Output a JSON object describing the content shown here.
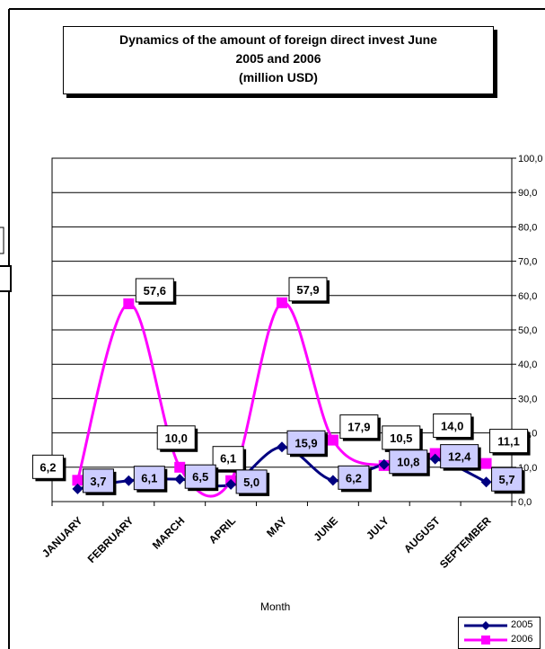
{
  "chart_data": {
    "type": "line",
    "title_lines": [
      "Dynamics of the amount of foreign direct invest June",
      "2005 and  2006",
      "(million USD)"
    ],
    "xlabel": "Month",
    "ylabel": "",
    "categories": [
      "JANUARY",
      "FEBRUARY",
      "MARCH",
      "APRIL",
      "MAY",
      "JUNE",
      "JULY",
      "AUGUST",
      "SEPTEMBER"
    ],
    "y_ticks": [
      "0,0",
      "10,0",
      "20,0",
      "30,0",
      "40,0",
      "50,0",
      "60,0",
      "70,0",
      "80,0",
      "90,0",
      "100,0"
    ],
    "ylim": [
      0,
      100
    ],
    "grid": true,
    "legend_position": "bottom-right",
    "series": [
      {
        "name": "2005",
        "color": "#000080",
        "marker": "diamond",
        "values": [
          3.7,
          6.1,
          6.5,
          5.0,
          15.9,
          6.2,
          10.8,
          12.4,
          5.7
        ],
        "labels": [
          "3,7",
          "6,1",
          "6,5",
          "5,0",
          "15,9",
          "6,2",
          "10,8",
          "12,4",
          "5,7"
        ]
      },
      {
        "name": "2006",
        "color": "#ff00ff",
        "marker": "square",
        "values": [
          6.2,
          57.6,
          10.0,
          6.1,
          57.9,
          17.9,
          10.5,
          14.0,
          11.1
        ],
        "labels": [
          "6,2",
          "57,6",
          "10,0",
          "6,1",
          "57,9",
          "17,9",
          "10,5",
          "14,0",
          "11,1"
        ]
      }
    ]
  }
}
